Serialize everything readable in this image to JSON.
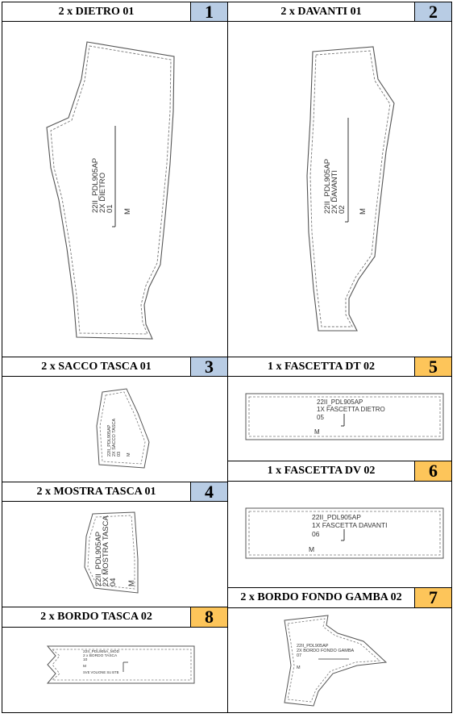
{
  "pieces": [
    {
      "id": "1",
      "title": "2 x DIETRO 01",
      "number": "1",
      "badge_color": "#b8cce4",
      "labels": [
        "22II_PDL905AP",
        "2X DIETRO",
        "01"
      ],
      "size": "M"
    },
    {
      "id": "2",
      "title": "2 x DAVANTI 01",
      "number": "2",
      "badge_color": "#b8cce4",
      "labels": [
        "22II_PDL905AP",
        "2X DAVANTI",
        "02"
      ],
      "size": "M"
    },
    {
      "id": "3",
      "title": "2 x SACCO TASCA 01",
      "number": "3",
      "badge_color": "#b8cce4",
      "labels": [
        "22II_PDL905AP",
        "2X SACCO TASCA",
        "03"
      ],
      "size": "M"
    },
    {
      "id": "4",
      "title": "2 x MOSTRA TASCA 01",
      "number": "4",
      "badge_color": "#b8cce4",
      "labels": [
        "22II_PDL905AP",
        "2X MOSTRA TASCA",
        "04"
      ],
      "size": "M"
    },
    {
      "id": "5",
      "title": "1 x FASCETTA DT 02",
      "number": "5",
      "badge_color": "#fdc55a",
      "labels": [
        "22II_PDL905AP",
        "1X FASCETTA DIETRO",
        "05"
      ],
      "size": "M"
    },
    {
      "id": "6",
      "title": "1 x FASCETTA DV 02",
      "number": "6",
      "badge_color": "#fdc55a",
      "labels": [
        "22II_PDL905AP",
        "1X FASCETTA DAVANTI",
        "06"
      ],
      "size": "M"
    },
    {
      "id": "7",
      "title": "2 x BORDO FONDO GAMBA 02",
      "number": "7",
      "badge_color": "#fdc55a",
      "labels": [
        "22II_PDL905AP",
        "2X BORDO FONDO GAMBA",
        "07"
      ],
      "size": "M"
    },
    {
      "id": "8",
      "title": "2 x BORDO TASCA 02",
      "number": "8",
      "badge_color": "#fdc55a",
      "labels": [
        "22II_PDL905A_MOD",
        "2 x BORDO TASCA",
        "10"
      ],
      "size": "M",
      "note": "SVE VOLIONE SU BTB"
    }
  ]
}
